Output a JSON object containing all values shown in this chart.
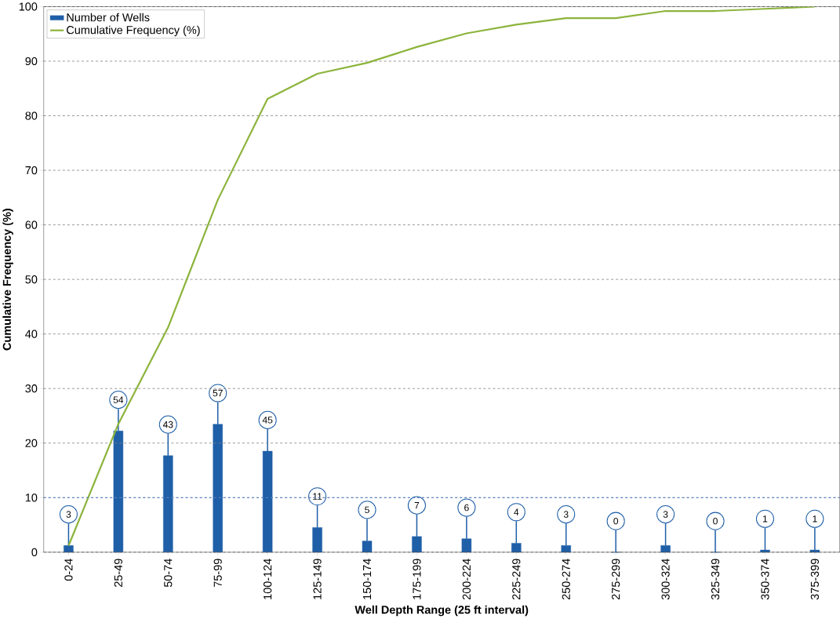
{
  "chart_data": {
    "type": "bar",
    "xlabel": "Well Depth Range (25 ft interval)",
    "ylabel": "Cumulative Frequency (%)",
    "categories": [
      "0-24",
      "25-49",
      "50-74",
      "75-99",
      "100-124",
      "125-149",
      "150-174",
      "175-199",
      "200-224",
      "225-249",
      "250-274",
      "275-299",
      "300-324",
      "325-349",
      "350-374",
      "375-399"
    ],
    "series": [
      {
        "name": "Number of Wells",
        "axis": "y2",
        "color": "#1f5fa8",
        "values": [
          3,
          54,
          43,
          57,
          45,
          11,
          5,
          7,
          6,
          4,
          3,
          0,
          3,
          0,
          1,
          1
        ],
        "value_labels": [
          "3",
          "54",
          "43",
          "57",
          "45",
          "11",
          "5",
          "7",
          "6",
          "4",
          "3",
          "0",
          "3",
          "0",
          "1",
          "1"
        ]
      },
      {
        "name": "Cumulative Frequency (%)",
        "type": "line",
        "color": "#8cb43c",
        "values": [
          1.2,
          23.5,
          41.2,
          64.6,
          83.1,
          87.7,
          89.7,
          92.6,
          95.1,
          96.7,
          97.9,
          97.9,
          99.2,
          99.2,
          99.6,
          100
        ]
      }
    ],
    "ylim": [
      0,
      100
    ],
    "yticks": [
      0,
      10,
      20,
      30,
      40,
      50,
      60,
      70,
      80,
      90,
      100
    ],
    "y2lim": [
      0,
      243
    ],
    "tick_labels": "xy",
    "grid": "y",
    "legend": "top left",
    "ref_lines": [
      {
        "axis": "y",
        "value": 10,
        "color": "#4a7fd0",
        "line_style": "dashed"
      }
    ]
  }
}
